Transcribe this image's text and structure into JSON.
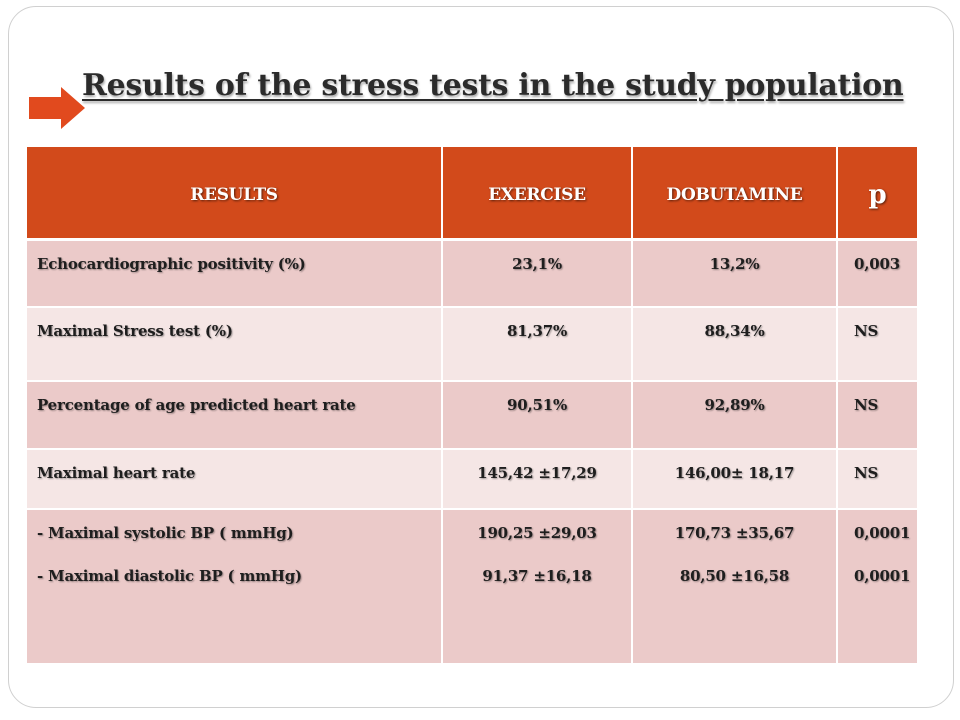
{
  "title": "Results of the stress tests in the study population",
  "colors": {
    "header_bg": "#d24a1b",
    "row_odd": "#ebcac9",
    "row_even": "#f5e6e5",
    "arrow": "#e14a1e"
  },
  "icons": {
    "pointer": "right-arrow-icon"
  },
  "table": {
    "headers": [
      "RESULTS",
      "EXERCISE",
      "DOBUTAMINE",
      "p"
    ],
    "rows": [
      {
        "label": [
          "Echocardiographic  positivity (%)"
        ],
        "exercise": [
          "23,1%"
        ],
        "dobutamine": [
          "13,2%"
        ],
        "p": [
          "0,003"
        ]
      },
      {
        "label": [
          "Maximal Stress test (%)"
        ],
        "exercise": [
          "81,37%"
        ],
        "dobutamine": [
          "88,34%"
        ],
        "p": [
          "NS"
        ]
      },
      {
        "label": [
          "Percentage of age predicted heart rate"
        ],
        "exercise": [
          "90,51%"
        ],
        "dobutamine": [
          "92,89%"
        ],
        "p": [
          "NS"
        ]
      },
      {
        "label": [
          "Maximal heart rate"
        ],
        "exercise": [
          "145,42 ±17,29"
        ],
        "dobutamine": [
          "146,00± 18,17"
        ],
        "p": [
          "NS"
        ]
      },
      {
        "label": [
          "- Maximal systolic BP ( mmHg)",
          "- Maximal diastolic BP ( mmHg)"
        ],
        "exercise": [
          "190,25 ±29,03",
          "91,37 ±16,18"
        ],
        "dobutamine": [
          "170,73 ±35,67",
          "80,50 ±16,58"
        ],
        "p": [
          "0,0001",
          "0,0001"
        ]
      }
    ]
  }
}
